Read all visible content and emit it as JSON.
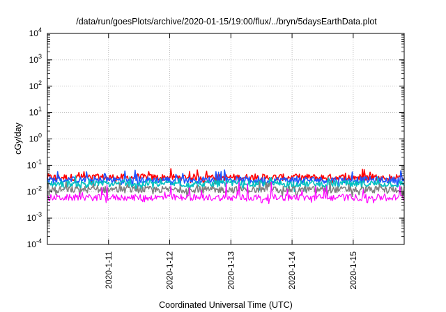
{
  "chart_data": {
    "type": "line",
    "title": "/data/run/goesPlots/archive/2020-01-15/19:00/flux/../bryn/5daysEarthData.plot",
    "xlabel": "Coordinated Universal Time (UTC)",
    "ylabel": "cGy/day",
    "yscale": "log",
    "ylim": [
      0.0001,
      10000
    ],
    "yticks": [
      {
        "base": "10",
        "exp": "-4"
      },
      {
        "base": "10",
        "exp": "-3"
      },
      {
        "base": "10",
        "exp": "-2"
      },
      {
        "base": "10",
        "exp": "-1"
      },
      {
        "base": "10",
        "exp": "0"
      },
      {
        "base": "10",
        "exp": "1"
      },
      {
        "base": "10",
        "exp": "2"
      },
      {
        "base": "10",
        "exp": "3"
      },
      {
        "base": "10",
        "exp": "4"
      }
    ],
    "xlim": [
      "2020-01-10 00:00",
      "2020-01-15 20:00"
    ],
    "xticks": [
      "2020-1-11",
      "2020-1-12",
      "2020-1-13",
      "2020-1-14",
      "2020-1-15"
    ],
    "grid": true,
    "legend": "none",
    "series": [
      {
        "color": "#ff0000",
        "typical": 0.035,
        "min": 0.02,
        "max": 0.075
      },
      {
        "color": "#1e56ff",
        "typical": 0.028,
        "min": 0.015,
        "max": 0.07
      },
      {
        "color": "#00c0c0",
        "typical": 0.02,
        "min": 0.01,
        "max": 0.04
      },
      {
        "color": "#808080",
        "typical": 0.012,
        "min": 0.006,
        "max": 0.025
      },
      {
        "color": "#ff00ff",
        "typical": 0.006,
        "min": 0.0035,
        "max": 0.028
      }
    ]
  }
}
